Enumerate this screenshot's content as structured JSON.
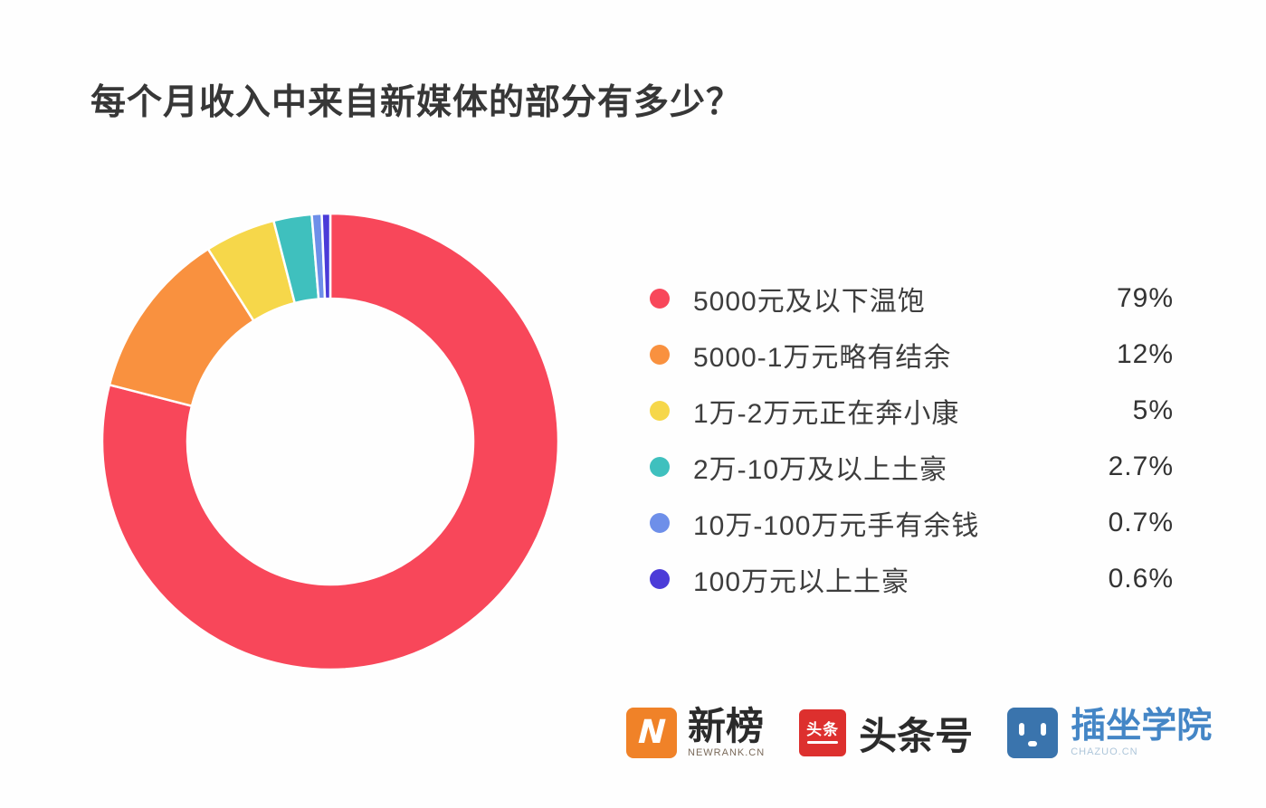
{
  "title": "每个月收入中来自新媒体的部分有多少？",
  "chart_data": {
    "type": "pie",
    "donut": true,
    "title": "每个月收入中来自新媒体的部分有多少？",
    "start_angle_deg": -90,
    "direction": "clockwise",
    "legend_position": "right",
    "categories": [
      "5000元及以下温饱",
      "5000-1万元略有结余",
      "1万-2万元正在奔小康",
      "2万-10万及以上土豪",
      "10万-100万元手有余钱",
      "100万元以上土豪"
    ],
    "values": [
      79,
      12,
      5,
      2.7,
      0.7,
      0.6
    ],
    "value_labels": [
      "79%",
      "12%",
      "5%",
      "2.7%",
      "0.7%",
      "0.6%"
    ],
    "colors": [
      "#F8475A",
      "#F9913F",
      "#F6D74A",
      "#3FC0BE",
      "#6E8FE9",
      "#4B3BD8"
    ],
    "outer_radius": 252,
    "inner_radius": 158,
    "slice_gap_color": "#FFFFFF"
  },
  "legend": {
    "items": [
      {
        "label": "5000元及以下温饱",
        "percent": "79%",
        "color": "#F8475A"
      },
      {
        "label": "5000-1万元略有结余",
        "percent": "12%",
        "color": "#F9913F"
      },
      {
        "label": "1万-2万元正在奔小康",
        "percent": "5%",
        "color": "#F6D74A"
      },
      {
        "label": "2万-10万及以上土豪",
        "percent": "2.7%",
        "color": "#3FC0BE"
      },
      {
        "label": "10万-100万元手有余钱",
        "percent": "0.7%",
        "color": "#6E8FE9"
      },
      {
        "label": "100万元以上土豪",
        "percent": "0.6%",
        "color": "#4B3BD8"
      }
    ]
  },
  "footer": {
    "logos": [
      {
        "name": "newrank",
        "text": "新榜",
        "subtext": "NEWRANK.CN",
        "badge_letter": "N",
        "badge_color": "#F08228"
      },
      {
        "name": "toutiao",
        "text": "头条号",
        "badge_text": "头条",
        "badge_color": "#DD302E"
      },
      {
        "name": "chazuo",
        "text": "插坐学院",
        "subtext": "CHAZUO.CN",
        "badge_color": "#3A74AD",
        "text_color": "#4486C6"
      }
    ]
  }
}
